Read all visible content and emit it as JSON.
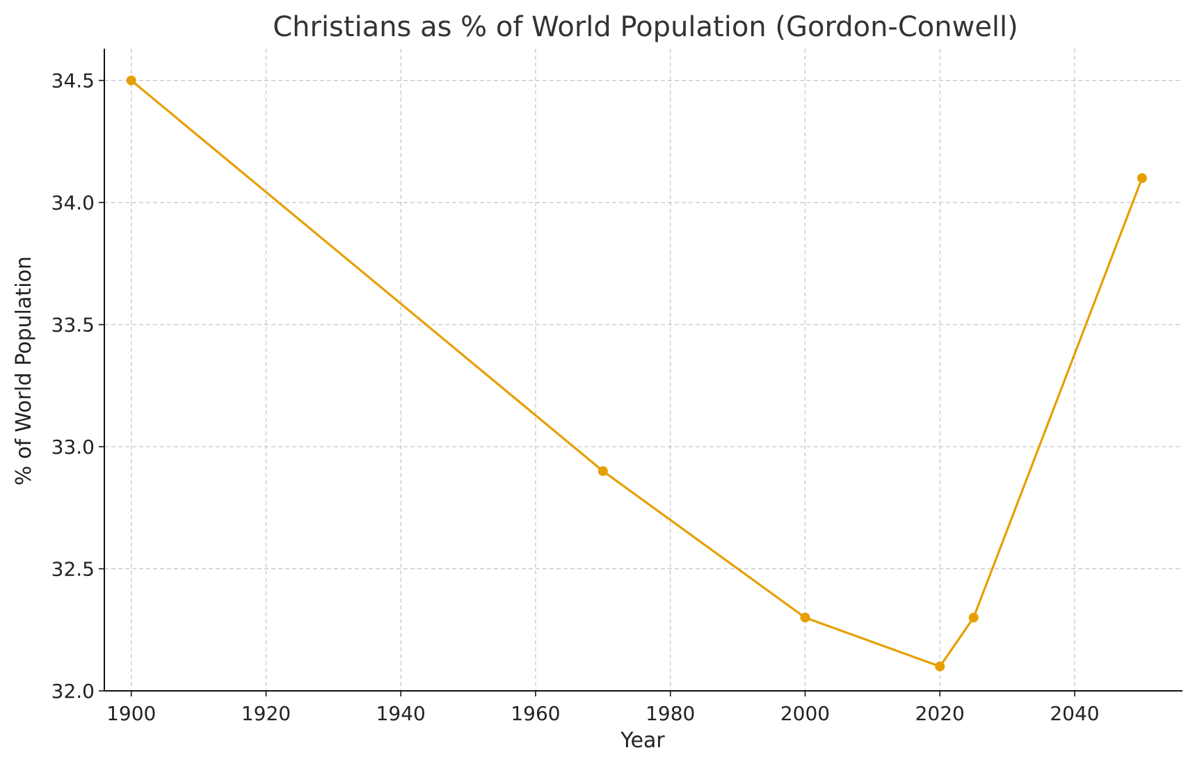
{
  "chart_data": {
    "type": "line",
    "title": "Christians as % of World Population (Gordon-Conwell)",
    "xlabel": "Year",
    "ylabel": "% of World Population",
    "xlim": [
      1896,
      2056
    ],
    "ylim": [
      32.0,
      34.63
    ],
    "xticks": [
      1900,
      1920,
      1940,
      1960,
      1980,
      2000,
      2020,
      2040
    ],
    "yticks": [
      32.0,
      32.5,
      33.0,
      33.5,
      34.0,
      34.5
    ],
    "ytick_labels": [
      "32.0",
      "32.5",
      "33.0",
      "33.5",
      "34.0",
      "34.5"
    ],
    "grid": true,
    "color": "#E69F00",
    "series": [
      {
        "x": [
          1900,
          1970,
          2000,
          2020,
          2025,
          2050
        ],
        "values": [
          34.5,
          32.9,
          32.3,
          32.1,
          32.3,
          34.1
        ]
      }
    ]
  }
}
